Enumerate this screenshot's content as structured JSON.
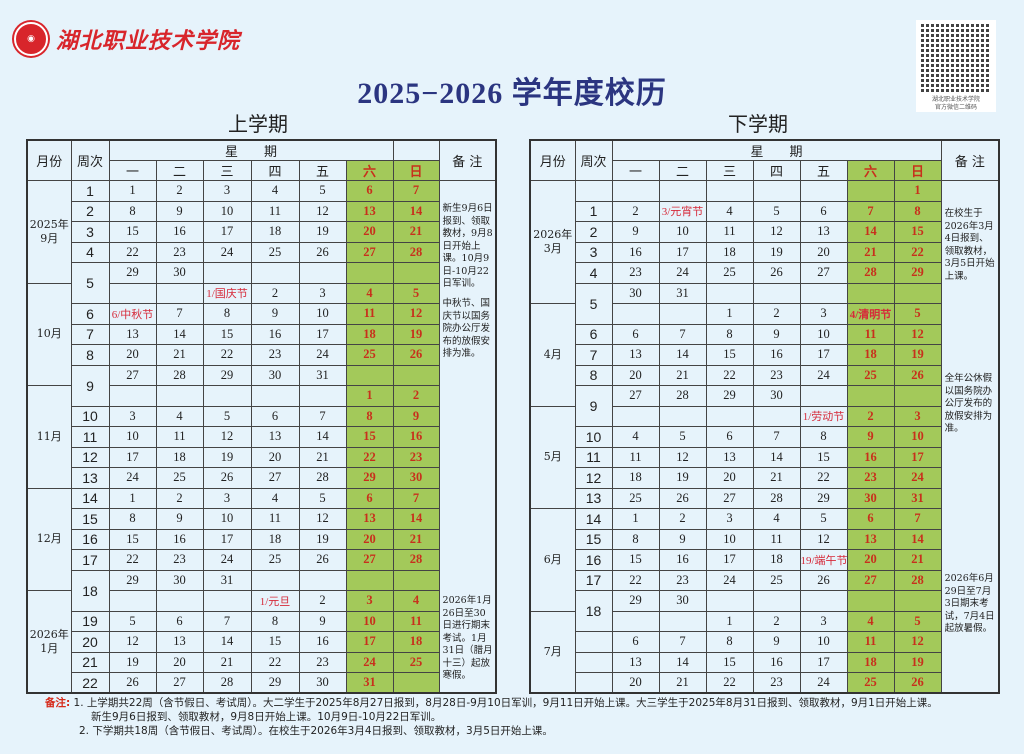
{
  "header": {
    "school_name": "湖北职业技术学院",
    "seal_text": "1951",
    "title": "2025−2026 学年度校历",
    "qr_caption_1": "湖北职业技术学院",
    "qr_caption_2": "官方微信二维码"
  },
  "colors": {
    "title": "#2b3580",
    "weekend_fill": "#a3c95a",
    "weekend_text": "#c8301c",
    "holiday_text": "#d62a3a",
    "background": "#e6f3fb"
  },
  "columns": {
    "month": "月份",
    "week": "周次",
    "weekday_group": "星　　期",
    "days": [
      "一",
      "二",
      "三",
      "四",
      "五",
      "六",
      "日"
    ],
    "notes": "备 注"
  },
  "semesters": [
    {
      "title": "上学期",
      "months": [
        {
          "label": "2025年\n9月",
          "rows": 5
        },
        {
          "label": "10月",
          "rows": 5
        },
        {
          "label": "11月",
          "rows": 5
        },
        {
          "label": "12月",
          "rows": 5
        },
        {
          "label": "2026年\n1月",
          "rows": 5
        }
      ],
      "rows": [
        {
          "w": "1",
          "d": [
            "1",
            "2",
            "3",
            "4",
            "5",
            "6",
            "7"
          ]
        },
        {
          "w": "2",
          "d": [
            "8",
            "9",
            "10",
            "11",
            "12",
            "13",
            "14"
          ]
        },
        {
          "w": "3",
          "d": [
            "15",
            "16",
            "17",
            "18",
            "19",
            "20",
            "21"
          ]
        },
        {
          "w": "4",
          "d": [
            "22",
            "23",
            "24",
            "25",
            "26",
            "27",
            "28"
          ]
        },
        {
          "w": "5",
          "span": 2,
          "d": [
            "29",
            "30",
            "",
            "",
            "",
            "",
            ""
          ]
        },
        {
          "d": [
            "",
            "",
            "1/国庆节",
            "2",
            "3",
            "4",
            "5"
          ]
        },
        {
          "w": "6",
          "d": [
            "6/中秋节",
            "7",
            "8",
            "9",
            "10",
            "11",
            "12"
          ]
        },
        {
          "w": "7",
          "d": [
            "13",
            "14",
            "15",
            "16",
            "17",
            "18",
            "19"
          ]
        },
        {
          "w": "8",
          "d": [
            "20",
            "21",
            "22",
            "23",
            "24",
            "25",
            "26"
          ]
        },
        {
          "w": "9",
          "span": 2,
          "d": [
            "27",
            "28",
            "29",
            "30",
            "31",
            "",
            ""
          ]
        },
        {
          "d": [
            "",
            "",
            "",
            "",
            "",
            "1",
            "2"
          ]
        },
        {
          "w": "10",
          "d": [
            "3",
            "4",
            "5",
            "6",
            "7",
            "8",
            "9"
          ]
        },
        {
          "w": "11",
          "d": [
            "10",
            "11",
            "12",
            "13",
            "14",
            "15",
            "16"
          ]
        },
        {
          "w": "12",
          "d": [
            "17",
            "18",
            "19",
            "20",
            "21",
            "22",
            "23"
          ]
        },
        {
          "w": "13",
          "d": [
            "24",
            "25",
            "26",
            "27",
            "28",
            "29",
            "30"
          ]
        },
        {
          "w": "14",
          "d": [
            "1",
            "2",
            "3",
            "4",
            "5",
            "6",
            "7"
          ]
        },
        {
          "w": "15",
          "d": [
            "8",
            "9",
            "10",
            "11",
            "12",
            "13",
            "14"
          ]
        },
        {
          "w": "16",
          "d": [
            "15",
            "16",
            "17",
            "18",
            "19",
            "20",
            "21"
          ]
        },
        {
          "w": "17",
          "d": [
            "22",
            "23",
            "24",
            "25",
            "26",
            "27",
            "28"
          ]
        },
        {
          "w": "18",
          "span": 2,
          "d": [
            "29",
            "30",
            "31",
            "",
            "",
            "",
            ""
          ]
        },
        {
          "d": [
            "",
            "",
            "",
            "1/元旦",
            "2",
            "3",
            "4"
          ]
        },
        {
          "w": "19",
          "d": [
            "5",
            "6",
            "7",
            "8",
            "9",
            "10",
            "11"
          ]
        },
        {
          "w": "20",
          "d": [
            "12",
            "13",
            "14",
            "15",
            "16",
            "17",
            "18"
          ]
        },
        {
          "w": "21",
          "d": [
            "19",
            "20",
            "21",
            "22",
            "23",
            "24",
            "25"
          ]
        },
        {
          "w": "22",
          "d": [
            "26",
            "27",
            "28",
            "29",
            "30",
            "31",
            ""
          ]
        }
      ],
      "notes": [
        "新生9月6日报到、领取教材，9月8日开始上课。10月9日-10月22日军训。",
        "中秋节、国庆节以国务院办公厅发布的放假安排为准。",
        "2026年1月26日至30日进行期末考试。1月31日（腊月十三）起放寒假。"
      ]
    },
    {
      "title": "下学期",
      "months": [
        {
          "label": "2026年\n3月",
          "rows": 6
        },
        {
          "label": "4月",
          "rows": 5
        },
        {
          "label": "5月",
          "rows": 5
        },
        {
          "label": "6月",
          "rows": 5
        },
        {
          "label": "7月",
          "rows": 4
        }
      ],
      "rows": [
        {
          "w": "",
          "d": [
            "",
            "",
            "",
            "",
            "",
            "",
            "1"
          ]
        },
        {
          "w": "1",
          "d": [
            "2",
            "3/元宵节",
            "4",
            "5",
            "6",
            "7",
            "8"
          ]
        },
        {
          "w": "2",
          "d": [
            "9",
            "10",
            "11",
            "12",
            "13",
            "14",
            "15"
          ]
        },
        {
          "w": "3",
          "d": [
            "16",
            "17",
            "18",
            "19",
            "20",
            "21",
            "22"
          ]
        },
        {
          "w": "4",
          "d": [
            "23",
            "24",
            "25",
            "26",
            "27",
            "28",
            "29"
          ]
        },
        {
          "w": "5",
          "span": 2,
          "d": [
            "30",
            "31",
            "",
            "",
            "",
            "",
            ""
          ]
        },
        {
          "d": [
            "",
            "",
            "1",
            "2",
            "3",
            "4/清明节",
            "5"
          ]
        },
        {
          "w": "6",
          "d": [
            "6",
            "7",
            "8",
            "9",
            "10",
            "11",
            "12"
          ]
        },
        {
          "w": "7",
          "d": [
            "13",
            "14",
            "15",
            "16",
            "17",
            "18",
            "19"
          ]
        },
        {
          "w": "8",
          "d": [
            "20",
            "21",
            "22",
            "23",
            "24",
            "25",
            "26"
          ]
        },
        {
          "w": "9",
          "span": 2,
          "d": [
            "27",
            "28",
            "29",
            "30",
            "",
            "",
            ""
          ]
        },
        {
          "d": [
            "",
            "",
            "",
            "",
            "1/劳动节",
            "2",
            "3"
          ]
        },
        {
          "w": "10",
          "d": [
            "4",
            "5",
            "6",
            "7",
            "8",
            "9",
            "10"
          ]
        },
        {
          "w": "11",
          "d": [
            "11",
            "12",
            "13",
            "14",
            "15",
            "16",
            "17"
          ]
        },
        {
          "w": "12",
          "d": [
            "18",
            "19",
            "20",
            "21",
            "22",
            "23",
            "24"
          ]
        },
        {
          "w": "13",
          "d": [
            "25",
            "26",
            "27",
            "28",
            "29",
            "30",
            "31"
          ]
        },
        {
          "w": "14",
          "d": [
            "1",
            "2",
            "3",
            "4",
            "5",
            "6",
            "7"
          ]
        },
        {
          "w": "15",
          "d": [
            "8",
            "9",
            "10",
            "11",
            "12",
            "13",
            "14"
          ]
        },
        {
          "w": "16",
          "d": [
            "15",
            "16",
            "17",
            "18",
            "19/端午节",
            "20",
            "21"
          ]
        },
        {
          "w": "17",
          "d": [
            "22",
            "23",
            "24",
            "25",
            "26",
            "27",
            "28"
          ]
        },
        {
          "w": "18",
          "span": 2,
          "d": [
            "29",
            "30",
            "",
            "",
            "",
            "",
            ""
          ]
        },
        {
          "d": [
            "",
            "",
            "1",
            "2",
            "3",
            "4",
            "5"
          ]
        },
        {
          "w": "",
          "d": [
            "6",
            "7",
            "8",
            "9",
            "10",
            "11",
            "12"
          ]
        },
        {
          "w": "",
          "d": [
            "13",
            "14",
            "15",
            "16",
            "17",
            "18",
            "19"
          ]
        },
        {
          "w": "",
          "d": [
            "20",
            "21",
            "22",
            "23",
            "24",
            "25",
            "26"
          ]
        }
      ],
      "notes": [
        "在校生于2026年3月4日报到、领取教材，3月5日开始上课。",
        "全年公休假以国务院办公厅发布的放假安排为准。",
        "2026年6月29日至7月3日期末考试，7月4日起放暑假。"
      ]
    }
  ],
  "footer": {
    "label": "备注:",
    "lines": [
      "1. 上学期共22周（含节假日、考试周）。大二学生于2025年8月27日报到，8月28日-9月10日军训，9月11日开始上课。大三学生于2025年8月31日报到、领取教材，9月1日开始上课。",
      "新生9月6日报到、领取教材，9月8日开始上课。10月9日-10月22日军训。",
      "2. 下学期共18周（含节假日、考试周）。在校生于2026年3月4日报到、领取教材，3月5日开始上课。"
    ]
  }
}
